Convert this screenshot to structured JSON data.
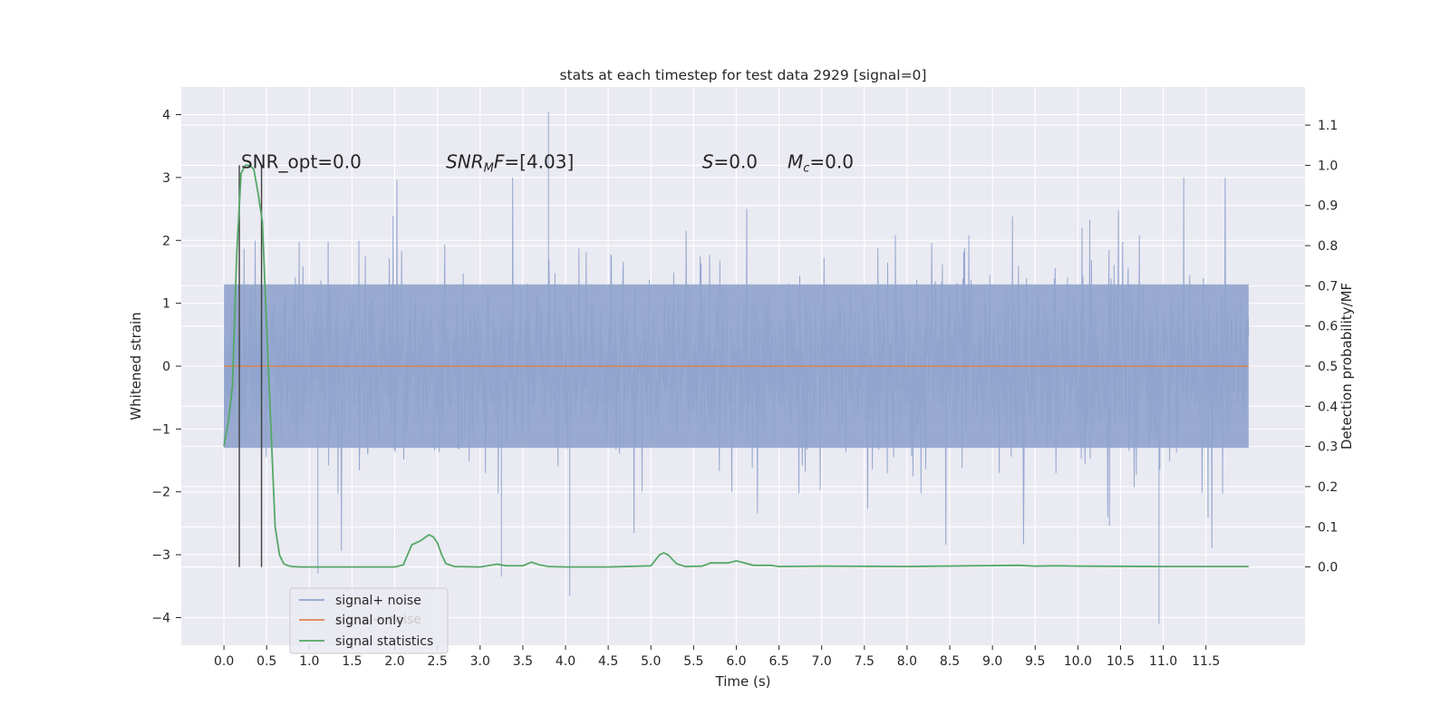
{
  "chart_data": {
    "type": "line",
    "title": "stats at each timestep for test data 2929 [signal=0]",
    "xlabel": "Time (s)",
    "ylabel": "Whitened strain",
    "ylabel_right": "Detection probability/MF",
    "xlim": [
      -0.5,
      12.66
    ],
    "ylim": [
      -4.44,
      4.44
    ],
    "ylim_right": [
      -0.195,
      1.195
    ],
    "x_ticks": [
      0.0,
      0.5,
      1.0,
      1.5,
      2.0,
      2.5,
      3.0,
      3.5,
      4.0,
      4.5,
      5.0,
      5.5,
      6.0,
      6.5,
      7.0,
      7.5,
      8.0,
      8.5,
      9.0,
      9.5,
      10.0,
      10.5,
      11.0,
      11.5
    ],
    "x_tick_labels": [
      "0.0",
      "0.5",
      "1.0",
      "1.5",
      "2.0",
      "2.5",
      "3.0",
      "3.5",
      "4.0",
      "4.5",
      "5.0",
      "5.5",
      "6.0",
      "6.5",
      "7.0",
      "7.5",
      "8.0",
      "8.5",
      "9.0",
      "9.5",
      "10.0",
      "10.5",
      "11.0",
      "11.5"
    ],
    "y_ticks": [
      -4,
      -3,
      -2,
      -1,
      0,
      1,
      2,
      3,
      4
    ],
    "y_tick_labels": [
      "−4",
      "−3",
      "−2",
      "−1",
      "0",
      "1",
      "2",
      "3",
      "4"
    ],
    "y_ticks_right": [
      0.0,
      0.1,
      0.2,
      0.3,
      0.4,
      0.5,
      0.6,
      0.7,
      0.8,
      0.9,
      1.0,
      1.1
    ],
    "y_tick_labels_right": [
      "0.0",
      "0.1",
      "0.2",
      "0.3",
      "0.4",
      "0.5",
      "0.6",
      "0.7",
      "0.8",
      "0.9",
      "1.0",
      "1.1"
    ],
    "grid": true,
    "legend_position": "lower-left",
    "series": [
      {
        "name": "signal+ noise",
        "axis": "left",
        "color": "#8fa3cc",
        "style": "dense noise band",
        "x_range": [
          0.0,
          12.0
        ],
        "typical_envelope": [
          -1.3,
          1.3
        ],
        "spike_extremes": [
          {
            "x": 1.1,
            "y": -3.3
          },
          {
            "x": 3.25,
            "y": -3.35
          },
          {
            "x": 3.8,
            "y": 4.05
          },
          {
            "x": 4.05,
            "y": -3.65
          },
          {
            "x": 10.95,
            "y": -4.1
          }
        ]
      },
      {
        "name": "signal only",
        "axis": "left",
        "color": "#dd8452",
        "x": [
          0.0,
          12.0
        ],
        "y": [
          0.0,
          0.0
        ]
      },
      {
        "name": "signal statistics",
        "axis": "right",
        "color": "#55a868",
        "x": [
          0.0,
          0.05,
          0.1,
          0.15,
          0.2,
          0.25,
          0.3,
          0.35,
          0.4,
          0.45,
          0.5,
          0.55,
          0.6,
          0.65,
          0.7,
          0.75,
          0.8,
          0.9,
          1.0,
          1.5,
          2.0,
          2.1,
          2.2,
          2.3,
          2.4,
          2.45,
          2.5,
          2.55,
          2.6,
          2.7,
          3.0,
          3.2,
          3.3,
          3.5,
          3.6,
          3.7,
          3.8,
          4.0,
          4.5,
          5.0,
          5.1,
          5.15,
          5.2,
          5.3,
          5.4,
          5.6,
          5.7,
          5.9,
          6.0,
          6.1,
          6.2,
          6.4,
          6.5,
          7.0,
          8.0,
          9.3,
          9.5,
          9.75,
          10.0,
          11.0,
          12.0
        ],
        "y": [
          0.3,
          0.36,
          0.45,
          0.78,
          0.98,
          1.0,
          1.0,
          0.99,
          0.93,
          0.86,
          0.6,
          0.35,
          0.1,
          0.03,
          0.008,
          0.003,
          0.001,
          0.0,
          0.0,
          0.0,
          0.0,
          0.005,
          0.055,
          0.065,
          0.08,
          0.075,
          0.06,
          0.03,
          0.008,
          0.001,
          0.0,
          0.007,
          0.003,
          0.003,
          0.012,
          0.005,
          0.001,
          0.0,
          0.0,
          0.003,
          0.03,
          0.035,
          0.03,
          0.008,
          0.001,
          0.002,
          0.01,
          0.01,
          0.015,
          0.01,
          0.004,
          0.004,
          0.001,
          0.002,
          0.001,
          0.004,
          0.002,
          0.003,
          0.002,
          0.001,
          0.001
        ]
      }
    ],
    "vertical_lines": [
      {
        "x": 0.18,
        "ymin": 0.0,
        "ymax": 1.0,
        "color": "#404040"
      },
      {
        "x": 0.44,
        "ymin": 0.0,
        "ymax": 1.0,
        "color": "#404040"
      }
    ],
    "annotations": [
      {
        "text": "SNR_opt=0.0",
        "x": 0.2,
        "y": 3.15
      },
      {
        "text": "SNR_MF=[4.03]",
        "x": 2.6,
        "y": 3.15
      },
      {
        "text": "S=0.0",
        "x": 5.6,
        "y": 3.15
      },
      {
        "text": "M_c=0.0",
        "x": 6.6,
        "y": 3.15
      }
    ],
    "legend_entries": [
      "signal+ noise",
      "signal only",
      "signal statistics"
    ],
    "legend_ghost_text": "signal+ noise"
  }
}
